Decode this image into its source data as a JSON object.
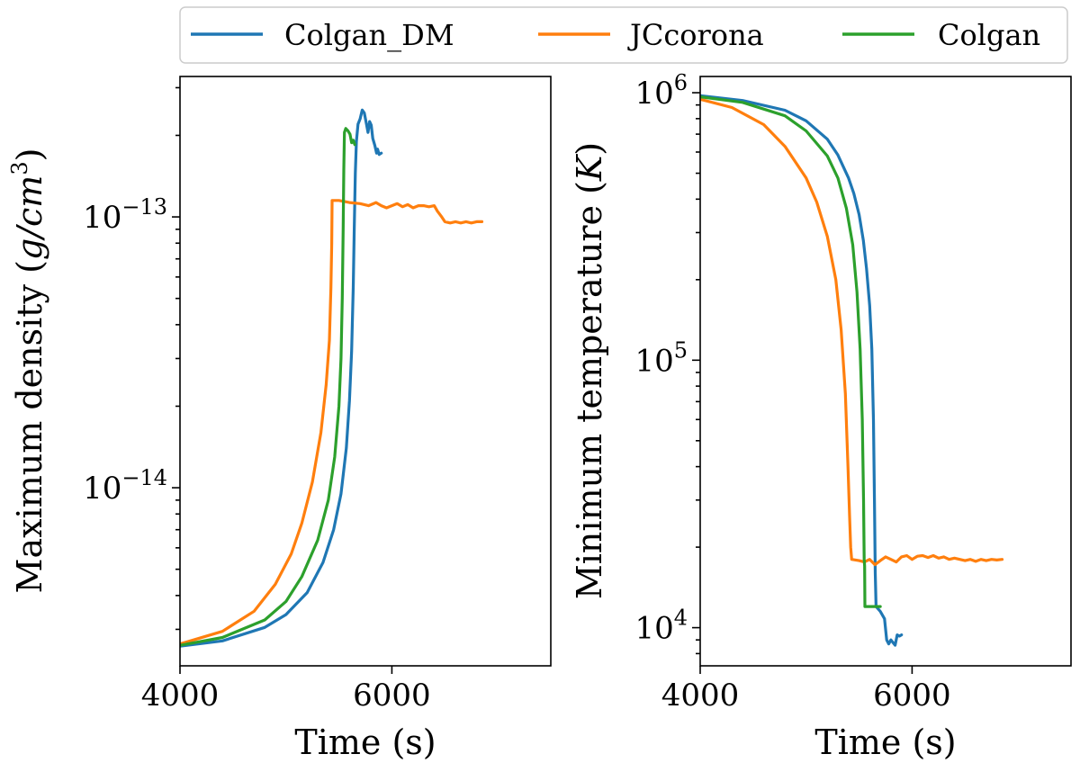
{
  "chart_data": [
    {
      "type": "line",
      "xlabel": "Time (s)",
      "ylabel_prefix": "Maximum density (",
      "ylabel_unit": "g/cm",
      "ylabel_exp": "3",
      "ylabel_suffix": ")",
      "xlim": [
        4000,
        7500
      ],
      "xticks": [
        4000,
        6000
      ],
      "xtick_labels": [
        "4000",
        "6000"
      ],
      "yscale": "log",
      "ylim": [
        2.2e-15,
        3.3e-13
      ],
      "yticks": [
        {
          "value": 1e-13,
          "base": "10",
          "exp": "−13"
        },
        {
          "value": 1e-14,
          "base": "10",
          "exp": "−14"
        }
      ],
      "series": [
        {
          "name": "Colgan_DM",
          "color": "#1f77b4",
          "points": [
            [
              4000,
              2.6e-15
            ],
            [
              4400,
              2.72e-15
            ],
            [
              4800,
              3.05e-15
            ],
            [
              5000,
              3.4e-15
            ],
            [
              5200,
              4.1e-15
            ],
            [
              5350,
              5.3e-15
            ],
            [
              5450,
              7e-15
            ],
            [
              5520,
              9.5e-15
            ],
            [
              5570,
              1.4e-14
            ],
            [
              5600,
              2.1e-14
            ],
            [
              5620,
              3.2e-14
            ],
            [
              5635,
              5.5e-14
            ],
            [
              5645,
              9e-14
            ],
            [
              5655,
              1.45e-13
            ],
            [
              5665,
              1.9e-13
            ],
            [
              5680,
              2.2e-13
            ],
            [
              5700,
              2.3e-13
            ],
            [
              5720,
              2.48e-13
            ],
            [
              5740,
              2.42e-13
            ],
            [
              5760,
              2.2e-13
            ],
            [
              5775,
              2.05e-13
            ],
            [
              5790,
              2.25e-13
            ],
            [
              5805,
              2.18e-13
            ],
            [
              5820,
              1.95e-13
            ],
            [
              5840,
              1.83e-13
            ],
            [
              5855,
              1.72e-13
            ],
            [
              5865,
              1.78e-13
            ],
            [
              5880,
              1.7e-13
            ],
            [
              5900,
              1.72e-13
            ]
          ]
        },
        {
          "name": "JCcorona",
          "color": "#ff7f0e",
          "points": [
            [
              4000,
              2.65e-15
            ],
            [
              4400,
              2.95e-15
            ],
            [
              4700,
              3.5e-15
            ],
            [
              4900,
              4.4e-15
            ],
            [
              5050,
              5.7e-15
            ],
            [
              5150,
              7.4e-15
            ],
            [
              5250,
              1.05e-14
            ],
            [
              5330,
              1.6e-14
            ],
            [
              5380,
              2.4e-14
            ],
            [
              5410,
              3.5e-14
            ],
            [
              5425,
              5.5e-14
            ],
            [
              5432,
              8e-14
            ],
            [
              5436,
              1.15e-13
            ],
            [
              5500,
              1.15e-13
            ],
            [
              5600,
              1.13e-13
            ],
            [
              5700,
              1.12e-13
            ],
            [
              5780,
              1.1e-13
            ],
            [
              5850,
              1.13e-13
            ],
            [
              5900,
              1.1e-13
            ],
            [
              5950,
              1.08e-13
            ],
            [
              6000,
              1.1e-13
            ],
            [
              6050,
              1.12e-13
            ],
            [
              6100,
              1.09e-13
            ],
            [
              6150,
              1.11e-13
            ],
            [
              6200,
              1.08e-13
            ],
            [
              6250,
              1.1e-13
            ],
            [
              6300,
              1.1e-13
            ],
            [
              6350,
              1.09e-13
            ],
            [
              6400,
              1.1e-13
            ],
            [
              6430,
              1.05e-13
            ],
            [
              6470,
              1e-13
            ],
            [
              6500,
              9.6e-14
            ],
            [
              6550,
              9.5e-14
            ],
            [
              6600,
              9.6e-14
            ],
            [
              6650,
              9.5e-14
            ],
            [
              6700,
              9.6e-14
            ],
            [
              6750,
              9.5e-14
            ],
            [
              6800,
              9.6e-14
            ],
            [
              6850,
              9.6e-14
            ]
          ]
        },
        {
          "name": "Colgan",
          "color": "#2ca02c",
          "points": [
            [
              4000,
              2.62e-15
            ],
            [
              4400,
              2.8e-15
            ],
            [
              4800,
              3.25e-15
            ],
            [
              5000,
              3.8e-15
            ],
            [
              5150,
              4.7e-15
            ],
            [
              5300,
              6.4e-15
            ],
            [
              5400,
              9e-15
            ],
            [
              5460,
              1.3e-14
            ],
            [
              5500,
              2e-14
            ],
            [
              5520,
              3e-14
            ],
            [
              5532,
              5e-14
            ],
            [
              5540,
              9e-14
            ],
            [
              5546,
              1.5e-13
            ],
            [
              5552,
              2.05e-13
            ],
            [
              5565,
              2.12e-13
            ],
            [
              5585,
              2.08e-13
            ],
            [
              5605,
              2.02e-13
            ],
            [
              5620,
              1.88e-13
            ],
            [
              5635,
              1.92e-13
            ],
            [
              5650,
              1.85e-13
            ]
          ]
        }
      ]
    },
    {
      "type": "line",
      "xlabel": "Time (s)",
      "ylabel_prefix": "Minimum temperature (",
      "ylabel_unit": "K",
      "ylabel_suffix": ")",
      "xlim": [
        4000,
        7500
      ],
      "xticks": [
        4000,
        6000
      ],
      "xtick_labels": [
        "4000",
        "6000"
      ],
      "yscale": "log",
      "ylim": [
        7200,
        1150000.0
      ],
      "yticks": [
        {
          "value": 1000000,
          "base": "10",
          "exp": "6"
        },
        {
          "value": 100000,
          "base": "10",
          "exp": "5"
        },
        {
          "value": 10000,
          "base": "10",
          "exp": "4"
        }
      ],
      "series": [
        {
          "name": "Colgan_DM",
          "color": "#1f77b4",
          "points": [
            [
              4000,
              975000.0
            ],
            [
              4400,
              935000.0
            ],
            [
              4800,
              860000.0
            ],
            [
              5000,
              785000.0
            ],
            [
              5200,
              670000.0
            ],
            [
              5300,
              585000.0
            ],
            [
              5400,
              480000.0
            ],
            [
              5450,
              420000.0
            ],
            [
              5500,
              350000.0
            ],
            [
              5540,
              280000.0
            ],
            [
              5570,
              220000.0
            ],
            [
              5600,
              160000.0
            ],
            [
              5620,
              110000.0
            ],
            [
              5635,
              60000.0
            ],
            [
              5645,
              30000.0
            ],
            [
              5652,
              16000.0
            ],
            [
              5660,
              12000.0
            ],
            [
              5700,
              11500.0
            ],
            [
              5740,
              10800.0
            ],
            [
              5760,
              9000.0
            ],
            [
              5780,
              8700.0
            ],
            [
              5800,
              9000.0
            ],
            [
              5820,
              8800.0
            ],
            [
              5840,
              8600.0
            ],
            [
              5860,
              9400.0
            ],
            [
              5880,
              9300.0
            ],
            [
              5900,
              9400.0
            ]
          ]
        },
        {
          "name": "JCcorona",
          "color": "#ff7f0e",
          "points": [
            [
              4000,
              945000.0
            ],
            [
              4300,
              880000.0
            ],
            [
              4600,
              760000.0
            ],
            [
              4800,
              630000.0
            ],
            [
              5000,
              480000.0
            ],
            [
              5100,
              390000.0
            ],
            [
              5200,
              290000.0
            ],
            [
              5280,
              200000.0
            ],
            [
              5330,
              130000.0
            ],
            [
              5370,
              75000.0
            ],
            [
              5395,
              40000.0
            ],
            [
              5410,
              26000.0
            ],
            [
              5420,
              20000.0
            ],
            [
              5430,
              18000.0
            ],
            [
              5500,
              17800.0
            ],
            [
              5550,
              17600.0
            ],
            [
              5600,
              18000.0
            ],
            [
              5650,
              17200.0
            ],
            [
              5700,
              17800.0
            ],
            [
              5750,
              18400.0
            ],
            [
              5800,
              18000.0
            ],
            [
              5850,
              17600.0
            ],
            [
              5900,
              18400.0
            ],
            [
              5950,
              18600.0
            ],
            [
              6000,
              18000.0
            ],
            [
              6050,
              18500.0
            ],
            [
              6100,
              18600.0
            ],
            [
              6150,
              18300.0
            ],
            [
              6200,
              18600.0
            ],
            [
              6250,
              18200.0
            ],
            [
              6300,
              18400.0
            ],
            [
              6350,
              18000.0
            ],
            [
              6400,
              18200.0
            ],
            [
              6450,
              18000.0
            ],
            [
              6500,
              17800.0
            ],
            [
              6550,
              18000.0
            ],
            [
              6600,
              17700.0
            ],
            [
              6650,
              18000.0
            ],
            [
              6700,
              17800.0
            ],
            [
              6750,
              18000.0
            ],
            [
              6800,
              17900.0
            ],
            [
              6850,
              18000.0
            ]
          ]
        },
        {
          "name": "Colgan",
          "color": "#2ca02c",
          "points": [
            [
              4000,
              965000.0
            ],
            [
              4400,
              920000.0
            ],
            [
              4800,
              820000.0
            ],
            [
              5000,
              720000.0
            ],
            [
              5200,
              580000.0
            ],
            [
              5300,
              480000.0
            ],
            [
              5380,
              370000.0
            ],
            [
              5440,
              270000.0
            ],
            [
              5480,
              180000.0
            ],
            [
              5510,
              110000.0
            ],
            [
              5530,
              60000.0
            ],
            [
              5542,
              30000.0
            ],
            [
              5548,
              18000.0
            ],
            [
              5552,
              17000.0
            ],
            [
              5555,
              12000.0
            ],
            [
              5600,
              12000.0
            ],
            [
              5650,
              12000.0
            ],
            [
              5700,
              12000.0
            ]
          ]
        }
      ]
    }
  ],
  "legend": {
    "placement": "top",
    "entries": [
      {
        "label": "Colgan_DM",
        "color": "#1f77b4"
      },
      {
        "label": "JCcorona",
        "color": "#ff7f0e"
      },
      {
        "label": "Colgan",
        "color": "#2ca02c"
      }
    ]
  }
}
